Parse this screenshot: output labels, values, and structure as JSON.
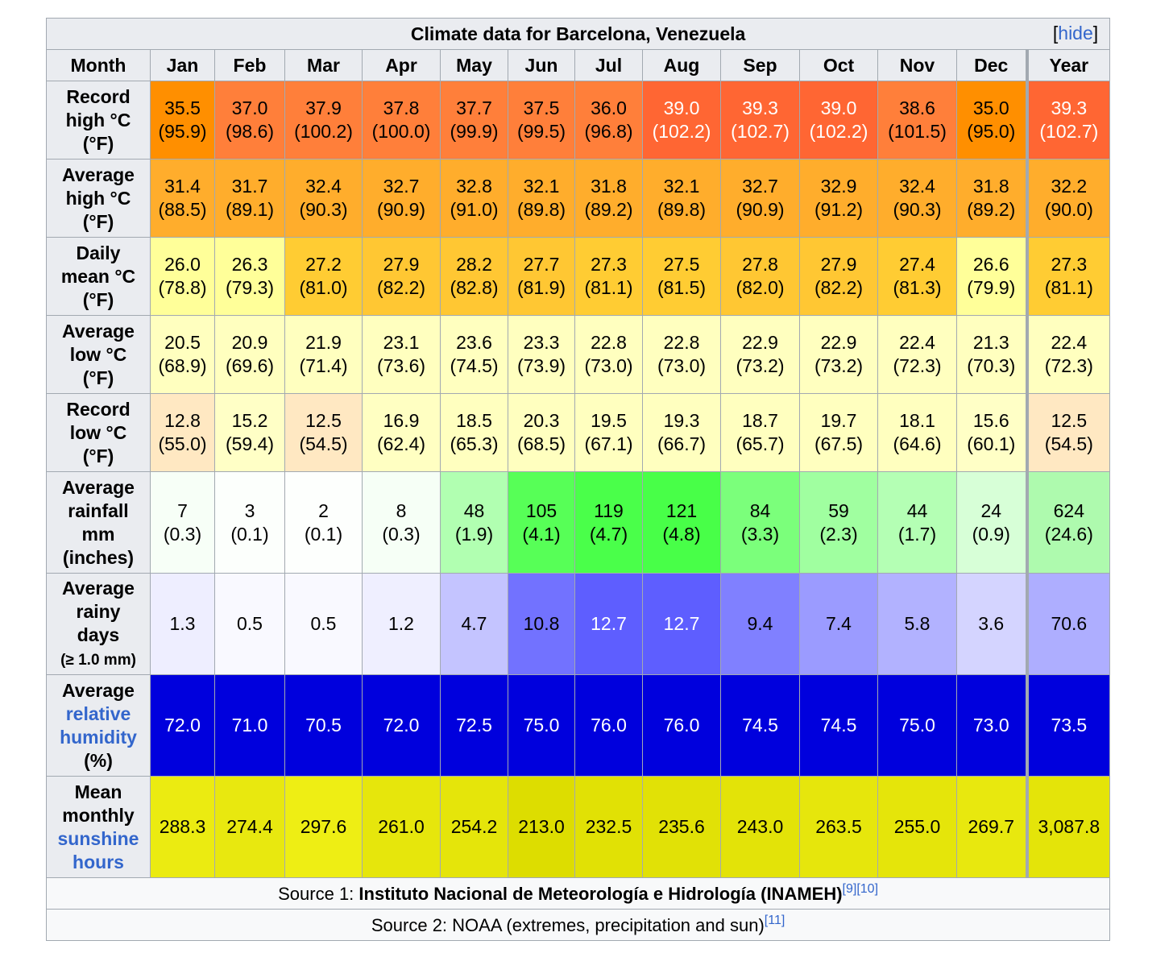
{
  "title": "Climate data for Barcelona, Venezuela",
  "hide": {
    "open": "[",
    "label": "hide",
    "close": "]"
  },
  "header": {
    "month": "Month",
    "months": [
      "Jan",
      "Feb",
      "Mar",
      "Apr",
      "May",
      "Jun",
      "Jul",
      "Aug",
      "Sep",
      "Oct",
      "Nov",
      "Dec"
    ],
    "year": "Year"
  },
  "rows": [
    {
      "name": "record-high",
      "label_lines": [
        "Record",
        "high °C",
        "(°F)"
      ],
      "values": [
        [
          "35.5",
          "(95.9)",
          "#ff8f00",
          "#000000"
        ],
        [
          "37.0",
          "(98.6)",
          "#ff7f3a",
          "#000000"
        ],
        [
          "37.9",
          "(100.2)",
          "#ff7f3a",
          "#000000"
        ],
        [
          "37.8",
          "(100.0)",
          "#ff7f3a",
          "#000000"
        ],
        [
          "37.7",
          "(99.9)",
          "#ff7f3a",
          "#000000"
        ],
        [
          "37.5",
          "(99.5)",
          "#ff7f3a",
          "#000000"
        ],
        [
          "36.0",
          "(96.8)",
          "#ff7f3a",
          "#000000"
        ],
        [
          "39.0",
          "(102.2)",
          "#ff6633",
          "#ffffff"
        ],
        [
          "39.3",
          "(102.7)",
          "#ff6633",
          "#ffffff"
        ],
        [
          "39.0",
          "(102.2)",
          "#ff6633",
          "#ffffff"
        ],
        [
          "38.6",
          "(101.5)",
          "#ff7f3a",
          "#000000"
        ],
        [
          "35.0",
          "(95.0)",
          "#ff8f00",
          "#000000"
        ],
        [
          "39.3",
          "(102.7)",
          "#ff6633",
          "#ffffff"
        ]
      ]
    },
    {
      "name": "average-high",
      "label_lines": [
        "Average",
        "high °C",
        "(°F)"
      ],
      "values": [
        [
          "31.4",
          "(88.5)",
          "#ffad2c",
          "#000000"
        ],
        [
          "31.7",
          "(89.1)",
          "#ffad2c",
          "#000000"
        ],
        [
          "32.4",
          "(90.3)",
          "#ffad2c",
          "#000000"
        ],
        [
          "32.7",
          "(90.9)",
          "#ffad2c",
          "#000000"
        ],
        [
          "32.8",
          "(91.0)",
          "#ffad2c",
          "#000000"
        ],
        [
          "32.1",
          "(89.8)",
          "#ffad2c",
          "#000000"
        ],
        [
          "31.8",
          "(89.2)",
          "#ffad2c",
          "#000000"
        ],
        [
          "32.1",
          "(89.8)",
          "#ffad2c",
          "#000000"
        ],
        [
          "32.7",
          "(90.9)",
          "#ffad2c",
          "#000000"
        ],
        [
          "32.9",
          "(91.2)",
          "#ffad2c",
          "#000000"
        ],
        [
          "32.4",
          "(90.3)",
          "#ffad2c",
          "#000000"
        ],
        [
          "31.8",
          "(89.2)",
          "#ffad2c",
          "#000000"
        ],
        [
          "32.2",
          "(90.0)",
          "#ffad2c",
          "#000000"
        ]
      ]
    },
    {
      "name": "daily-mean",
      "label_lines": [
        "Daily",
        "mean °C",
        "(°F)"
      ],
      "values": [
        [
          "26.0",
          "(78.8)",
          "#ffff99",
          "#000000"
        ],
        [
          "26.3",
          "(79.3)",
          "#ffff99",
          "#000000"
        ],
        [
          "27.2",
          "(81.0)",
          "#ffcc33",
          "#000000"
        ],
        [
          "27.9",
          "(82.2)",
          "#ffc733",
          "#000000"
        ],
        [
          "28.2",
          "(82.8)",
          "#ffc733",
          "#000000"
        ],
        [
          "27.7",
          "(81.9)",
          "#ffc733",
          "#000000"
        ],
        [
          "27.3",
          "(81.1)",
          "#ffcc33",
          "#000000"
        ],
        [
          "27.5",
          "(81.5)",
          "#ffcc33",
          "#000000"
        ],
        [
          "27.8",
          "(82.0)",
          "#ffc733",
          "#000000"
        ],
        [
          "27.9",
          "(82.2)",
          "#ffc733",
          "#000000"
        ],
        [
          "27.4",
          "(81.3)",
          "#ffcc33",
          "#000000"
        ],
        [
          "26.6",
          "(79.9)",
          "#ffff99",
          "#000000"
        ],
        [
          "27.3",
          "(81.1)",
          "#ffcc33",
          "#000000"
        ]
      ]
    },
    {
      "name": "average-low",
      "label_lines": [
        "Average",
        "low °C",
        "(°F)"
      ],
      "values": [
        [
          "20.5",
          "(68.9)",
          "#ffffbf",
          "#000000"
        ],
        [
          "20.9",
          "(69.6)",
          "#ffffbf",
          "#000000"
        ],
        [
          "21.9",
          "(71.4)",
          "#ffffbf",
          "#000000"
        ],
        [
          "23.1",
          "(73.6)",
          "#ffffbf",
          "#000000"
        ],
        [
          "23.6",
          "(74.5)",
          "#ffffbf",
          "#000000"
        ],
        [
          "23.3",
          "(73.9)",
          "#ffffbf",
          "#000000"
        ],
        [
          "22.8",
          "(73.0)",
          "#ffffbf",
          "#000000"
        ],
        [
          "22.8",
          "(73.0)",
          "#ffffbf",
          "#000000"
        ],
        [
          "22.9",
          "(73.2)",
          "#ffffbf",
          "#000000"
        ],
        [
          "22.9",
          "(73.2)",
          "#ffffbf",
          "#000000"
        ],
        [
          "22.4",
          "(72.3)",
          "#ffffbf",
          "#000000"
        ],
        [
          "21.3",
          "(70.3)",
          "#ffffbf",
          "#000000"
        ],
        [
          "22.4",
          "(72.3)",
          "#ffffbf",
          "#000000"
        ]
      ]
    },
    {
      "name": "record-low",
      "label_lines": [
        "Record",
        "low °C",
        "(°F)"
      ],
      "values": [
        [
          "12.8",
          "(55.0)",
          "#ffe8c2",
          "#000000"
        ],
        [
          "15.2",
          "(59.4)",
          "#ffffc6",
          "#000000"
        ],
        [
          "12.5",
          "(54.5)",
          "#ffe8c2",
          "#000000"
        ],
        [
          "16.9",
          "(62.4)",
          "#ffffc2",
          "#000000"
        ],
        [
          "18.5",
          "(65.3)",
          "#ffffbf",
          "#000000"
        ],
        [
          "20.3",
          "(68.5)",
          "#ffffbf",
          "#000000"
        ],
        [
          "19.5",
          "(67.1)",
          "#ffffbf",
          "#000000"
        ],
        [
          "19.3",
          "(66.7)",
          "#ffffbf",
          "#000000"
        ],
        [
          "18.7",
          "(65.7)",
          "#ffffbf",
          "#000000"
        ],
        [
          "19.7",
          "(67.5)",
          "#ffffbf",
          "#000000"
        ],
        [
          "18.1",
          "(64.6)",
          "#ffffbf",
          "#000000"
        ],
        [
          "15.6",
          "(60.1)",
          "#ffffc6",
          "#000000"
        ],
        [
          "12.5",
          "(54.5)",
          "#ffe8c2",
          "#000000"
        ]
      ]
    },
    {
      "name": "average-rainfall",
      "label_lines": [
        "Average",
        "rainfall",
        "mm",
        "(inches)"
      ],
      "values": [
        [
          "7",
          "(0.3)",
          "#f7fff7",
          "#000000"
        ],
        [
          "3",
          "(0.1)",
          "#fcfffc",
          "#000000"
        ],
        [
          "2",
          "(0.1)",
          "#fdfffd",
          "#000000"
        ],
        [
          "8",
          "(0.3)",
          "#f6fff6",
          "#000000"
        ],
        [
          "48",
          "(1.9)",
          "#b1ffb1",
          "#000000"
        ],
        [
          "105",
          "(4.1)",
          "#57ff57",
          "#000000"
        ],
        [
          "119",
          "(4.7)",
          "#4aff4a",
          "#000000"
        ],
        [
          "121",
          "(4.8)",
          "#48ff48",
          "#000000"
        ],
        [
          "84",
          "(3.3)",
          "#7bff7b",
          "#000000"
        ],
        [
          "59",
          "(2.3)",
          "#a0ffa0",
          "#000000"
        ],
        [
          "44",
          "(1.7)",
          "#b4ffb4",
          "#000000"
        ],
        [
          "24",
          "(0.9)",
          "#d7ffd7",
          "#000000"
        ],
        [
          "624",
          "(24.6)",
          "#aefaae",
          "#000000"
        ]
      ]
    },
    {
      "name": "average-rainy-days",
      "label_lines": [
        "Average",
        "rainy",
        "days"
      ],
      "label_small": "(≥ 1.0 mm)",
      "values": [
        [
          "1.3",
          "",
          "#eeeeff",
          "#000000"
        ],
        [
          "0.5",
          "",
          "#f9f9ff",
          "#000000"
        ],
        [
          "0.5",
          "",
          "#f9f9ff",
          "#000000"
        ],
        [
          "1.2",
          "",
          "#efefff",
          "#000000"
        ],
        [
          "4.7",
          "",
          "#c4c4ff",
          "#000000"
        ],
        [
          "10.8",
          "",
          "#7272ff",
          "#000000"
        ],
        [
          "12.7",
          "",
          "#5e5eff",
          "#ffffff"
        ],
        [
          "12.7",
          "",
          "#5e5eff",
          "#ffffff"
        ],
        [
          "9.4",
          "",
          "#8080ff",
          "#000000"
        ],
        [
          "7.4",
          "",
          "#9b9bff",
          "#000000"
        ],
        [
          "5.8",
          "",
          "#b2b2ff",
          "#000000"
        ],
        [
          "3.6",
          "",
          "#d4d4ff",
          "#000000"
        ],
        [
          "70.6",
          "",
          "#aeaeff",
          "#000000"
        ]
      ]
    },
    {
      "name": "relative-humidity",
      "label_lines": [
        "Average"
      ],
      "label_blue": [
        "relative",
        "humidity"
      ],
      "label_tail": "(%)",
      "values": [
        [
          "72.0",
          "",
          "#0000dd",
          "#ffffff"
        ],
        [
          "71.0",
          "",
          "#0000dd",
          "#ffffff"
        ],
        [
          "70.5",
          "",
          "#0000dd",
          "#ffffff"
        ],
        [
          "72.0",
          "",
          "#0000dd",
          "#ffffff"
        ],
        [
          "72.5",
          "",
          "#0000dd",
          "#ffffff"
        ],
        [
          "75.0",
          "",
          "#0000dd",
          "#ffffff"
        ],
        [
          "76.0",
          "",
          "#0000dd",
          "#ffffff"
        ],
        [
          "76.0",
          "",
          "#0000dd",
          "#ffffff"
        ],
        [
          "74.5",
          "",
          "#0000dd",
          "#ffffff"
        ],
        [
          "74.5",
          "",
          "#0000dd",
          "#ffffff"
        ],
        [
          "75.0",
          "",
          "#0000dd",
          "#ffffff"
        ],
        [
          "73.0",
          "",
          "#0000dd",
          "#ffffff"
        ],
        [
          "73.5",
          "",
          "#0000dd",
          "#ffffff"
        ]
      ]
    },
    {
      "name": "sunshine-hours",
      "label_lines": [
        "Mean",
        "monthly"
      ],
      "label_blue": [
        "sunshine",
        "hours"
      ],
      "label_tail": "",
      "values": [
        [
          "288.3",
          "",
          "#ebeb11",
          "#000000"
        ],
        [
          "274.4",
          "",
          "#e8e80f",
          "#000000"
        ],
        [
          "297.6",
          "",
          "#eeee14",
          "#000000"
        ],
        [
          "261.0",
          "",
          "#e6e60c",
          "#000000"
        ],
        [
          "254.2",
          "",
          "#e5e50a",
          "#000000"
        ],
        [
          "213.0",
          "",
          "#dddd00",
          "#000000"
        ],
        [
          "232.5",
          "",
          "#e1e105",
          "#000000"
        ],
        [
          "235.6",
          "",
          "#e1e106",
          "#000000"
        ],
        [
          "243.0",
          "",
          "#e3e308",
          "#000000"
        ],
        [
          "263.5",
          "",
          "#e6e60c",
          "#000000"
        ],
        [
          "255.0",
          "",
          "#e5e50a",
          "#000000"
        ],
        [
          "269.7",
          "",
          "#e8e80e",
          "#000000"
        ],
        [
          "3,087.8",
          "",
          "#e4e409",
          "#000000"
        ]
      ]
    }
  ],
  "sources": {
    "source1_prefix": "Source 1: ",
    "source1_bold": "Instituto Nacional de Meteorología e Hidrología (INAMEH)",
    "source1_refs": "[9][10]",
    "source2_text": "Source 2: NOAA (extremes, precipitation and sun)",
    "source2_refs": "[11]"
  }
}
